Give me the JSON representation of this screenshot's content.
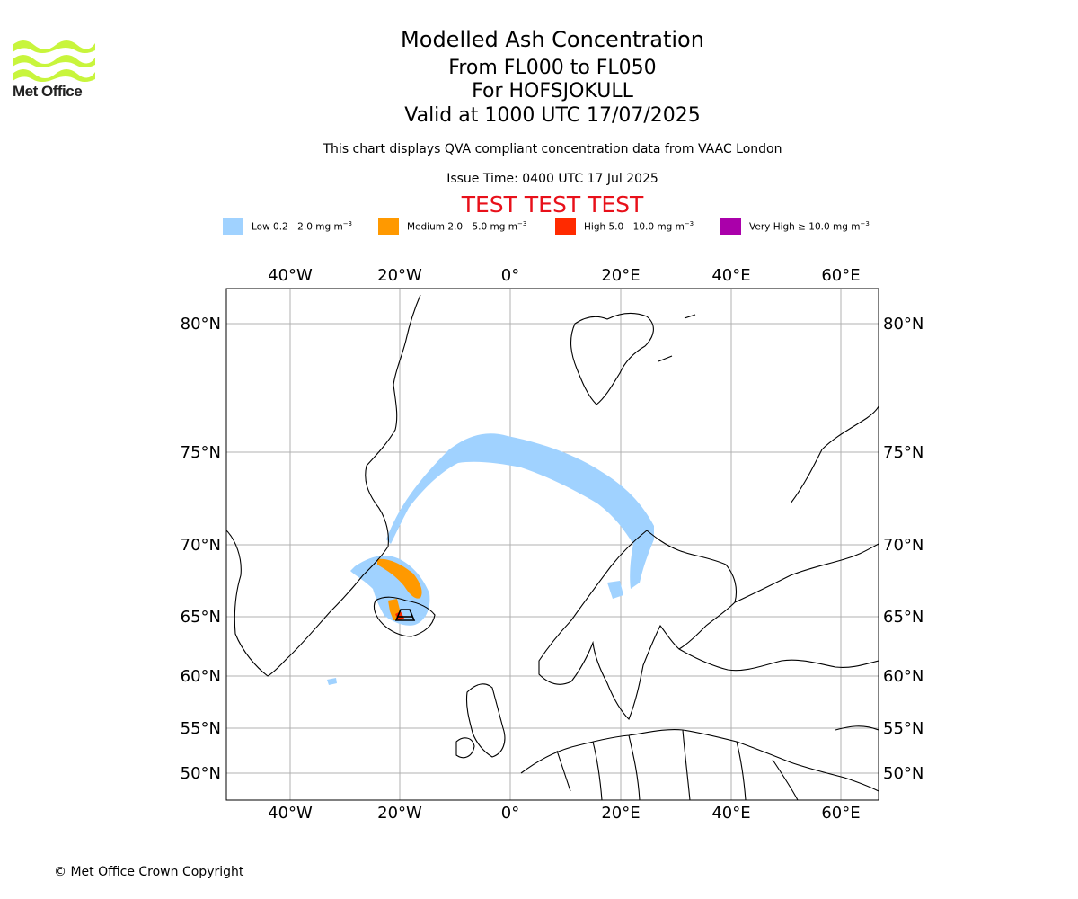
{
  "logo": {
    "icon": "met-office-wave-logo",
    "text": "Met Office",
    "color": "#c8f53c"
  },
  "title": {
    "line1": "Modelled Ash Concentration",
    "line2": "From FL000 to FL050",
    "line3": "For HOFSJOKULL",
    "line4": "Valid at 1000 UTC 17/07/2025"
  },
  "subtitle": "This chart displays QVA compliant concentration data from VAAC London",
  "issue_time": "Issue Time: 0400 UTC 17 Jul 2025",
  "test_banner": {
    "text": "TEST TEST TEST",
    "color": "#e8101a"
  },
  "legend": [
    {
      "label": "Low 0.2 - 2.0 mg m",
      "unit_exp": "−3",
      "color": "#a0d2ff"
    },
    {
      "label": "Medium 2.0 - 5.0 mg m",
      "unit_exp": "−3",
      "color": "#ff9900"
    },
    {
      "label": "High 5.0 - 10.0 mg m",
      "unit_exp": "−3",
      "color": "#ff2a00"
    },
    {
      "label": "Very High  ≥  10.0 mg m",
      "unit_exp": "−3",
      "color": "#aa00aa"
    }
  ],
  "map": {
    "lon_ticks": [
      "40°W",
      "20°W",
      "0°",
      "20°E",
      "40°E",
      "60°E"
    ],
    "lat_ticks": [
      "80°N",
      "75°N",
      "70°N",
      "65°N",
      "60°N",
      "55°N",
      "50°N"
    ],
    "grid": true,
    "source_volcano": "HOFSJOKULL"
  },
  "copyright": "© Met Office Crown Copyright"
}
